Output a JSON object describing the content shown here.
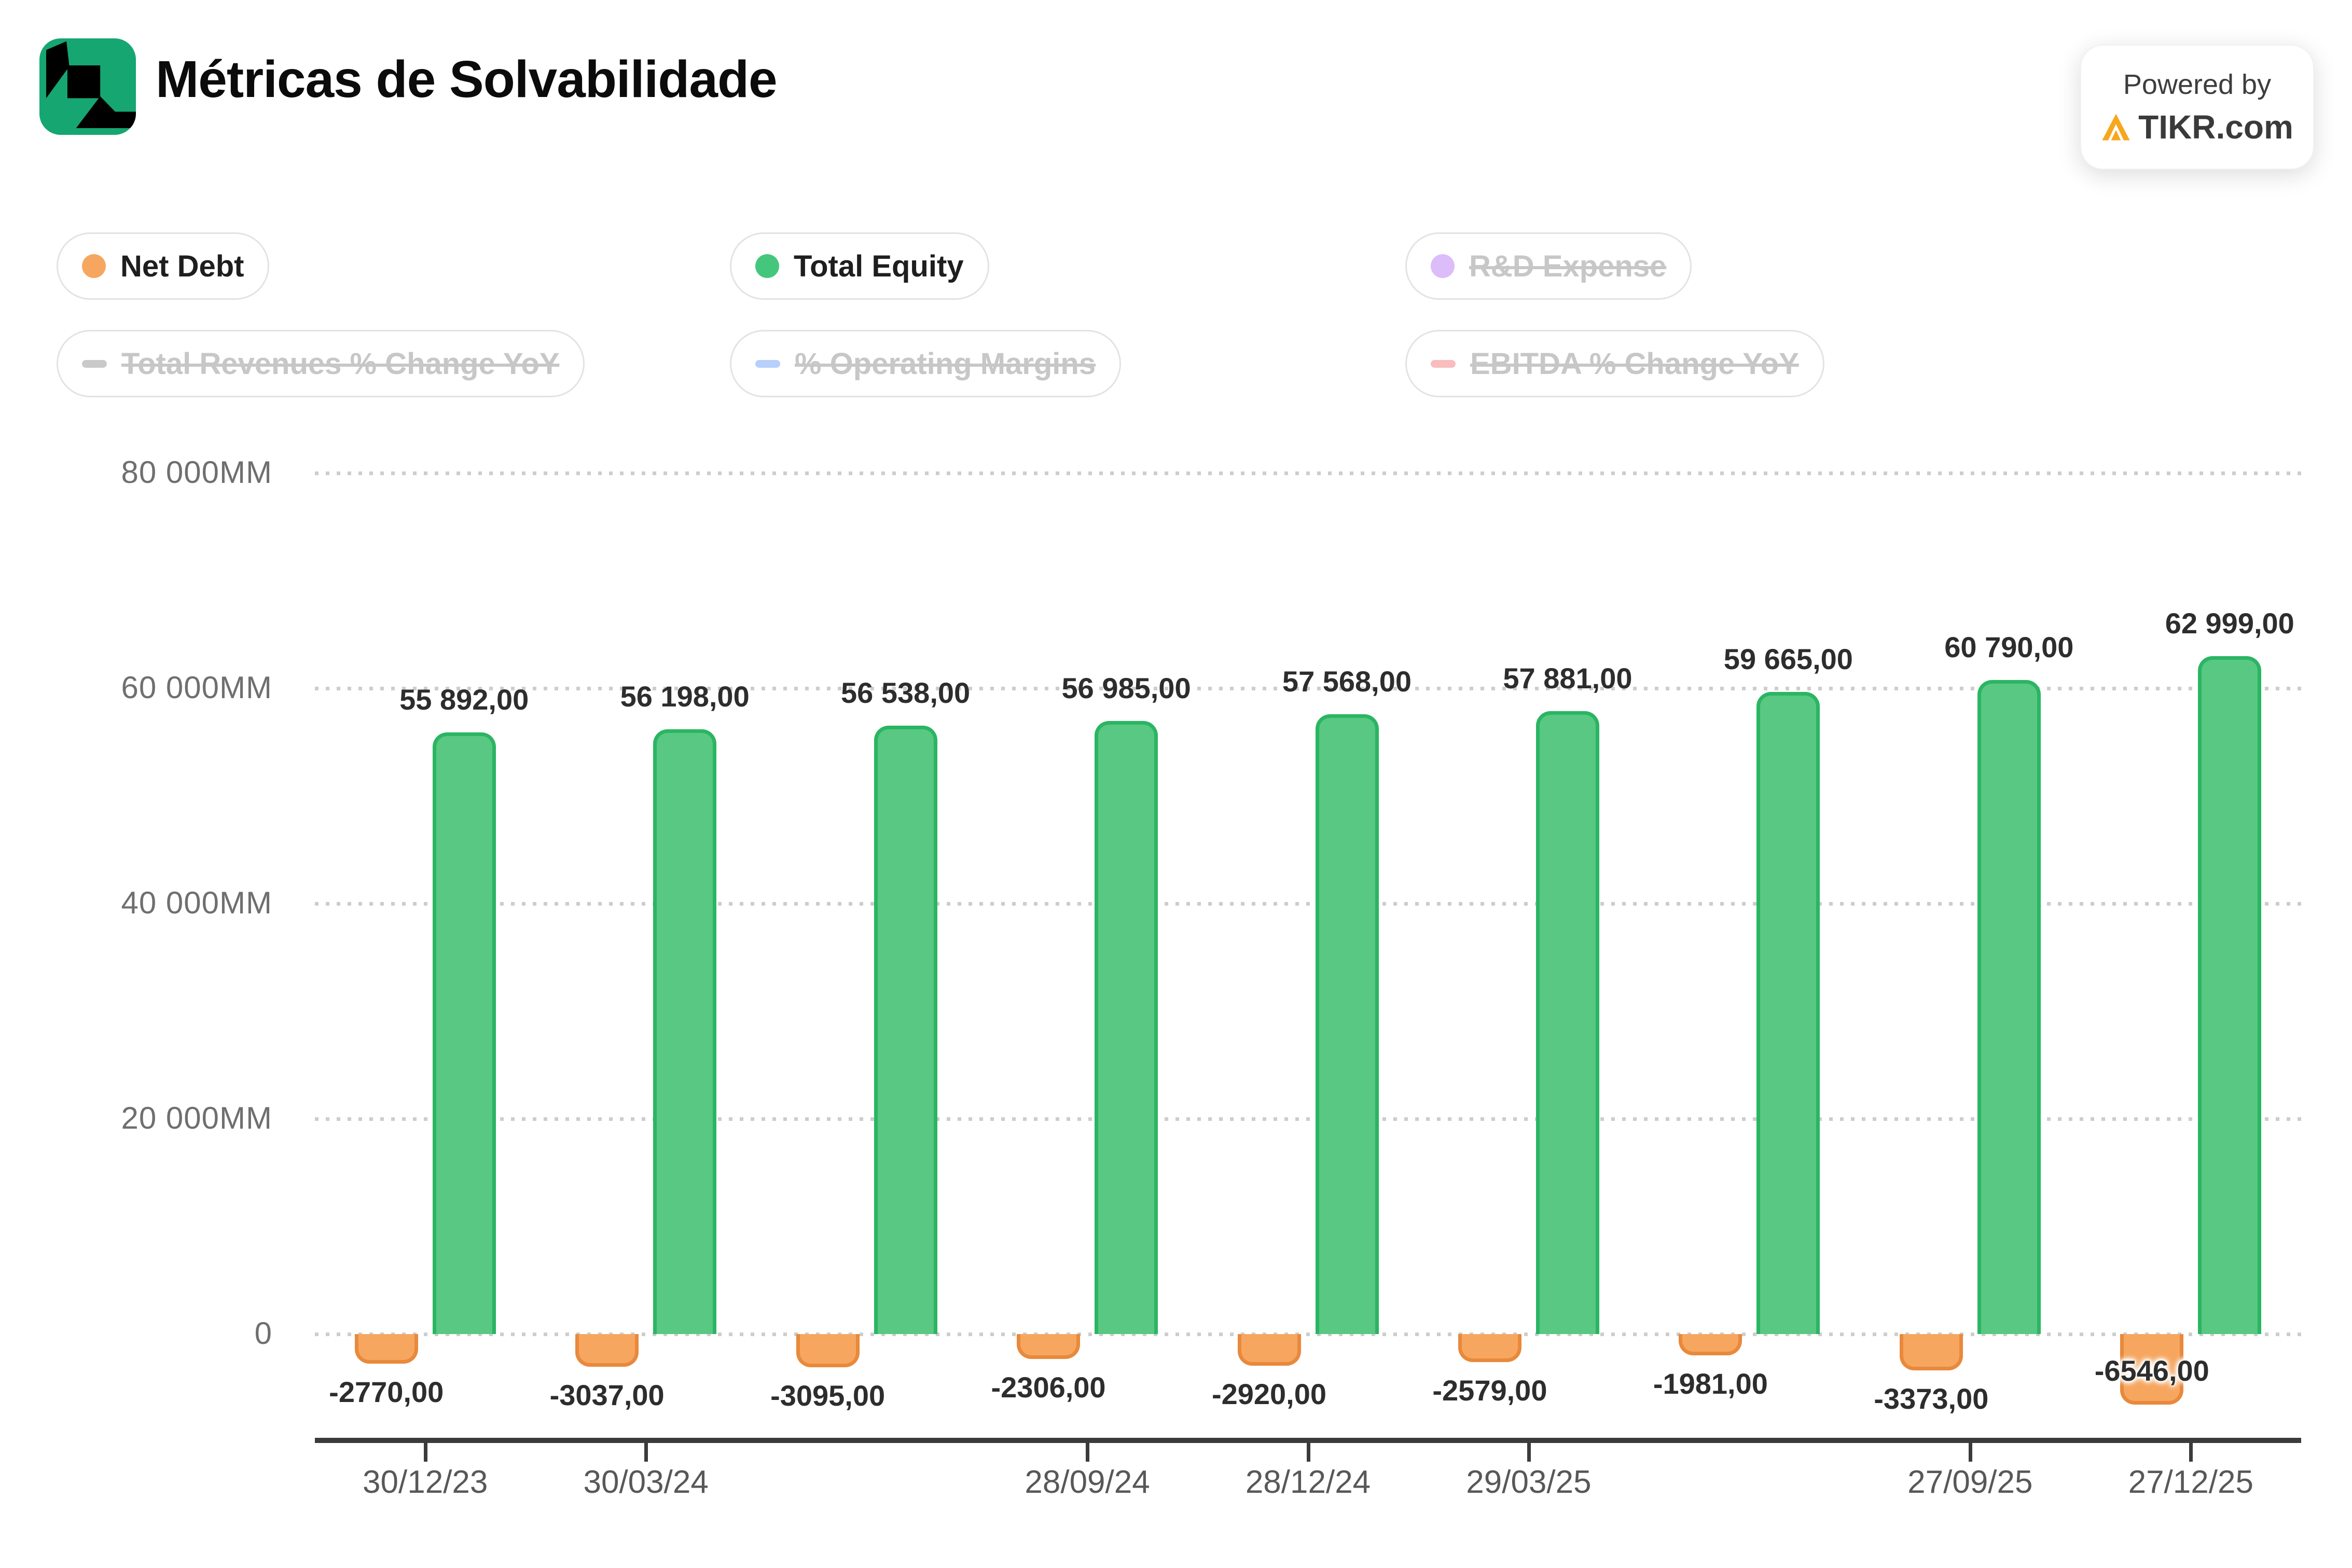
{
  "header": {
    "title": "Métricas de Solvabilidade",
    "badge_line1": "Powered by",
    "badge_line2": "TIKR.com"
  },
  "colors": {
    "green_fill": "#58c882",
    "green_stroke": "#2bb563",
    "orange_fill": "#f7a65f",
    "orange_stroke": "#e8893c",
    "axis": "#3b3b3b",
    "grid_dots": "#cdcdcd",
    "tikr_green": "#16a672",
    "tikr_amber": "#f7a61e"
  },
  "legend": {
    "items": [
      {
        "label": "Net Debt",
        "marker": "dot",
        "color": "#f7a65f",
        "active": true
      },
      {
        "label": "Total Equity",
        "marker": "dot",
        "color": "#44c77c",
        "active": true
      },
      {
        "label": "R&D Expense",
        "marker": "dot",
        "color": "#dcbcf9",
        "active": false
      },
      {
        "label": "Total Revenues % Change YoY",
        "marker": "dash",
        "color": "#c9c9c9",
        "active": false
      },
      {
        "label": "% Operating Margins",
        "marker": "dash",
        "color": "#b7cffb",
        "active": false
      },
      {
        "label": "EBITDA % Change YoY",
        "marker": "dash",
        "color": "#f9bdbd",
        "active": false
      }
    ]
  },
  "chart_data": {
    "type": "bar",
    "title": "Métricas de Solvabilidade",
    "categories": [
      "30/12/23",
      "30/03/24",
      "",
      "28/09/24",
      "28/12/24",
      "29/03/25",
      "",
      "27/09/25",
      "27/12/25"
    ],
    "series": [
      {
        "name": "Net Debt",
        "color": "#f7a65f",
        "values": [
          -2770,
          -3037,
          -3095,
          -2306,
          -2920,
          -2579,
          -1981,
          -3373,
          -6546
        ],
        "labels": [
          "-2770,00",
          "-3037,00",
          "-3095,00",
          "-2306,00",
          "-2920,00",
          "-2579,00",
          "-1981,00",
          "-3373,00",
          "-6546,00"
        ]
      },
      {
        "name": "Total Equity",
        "color": "#58c882",
        "values": [
          55892,
          56198,
          56538,
          56985,
          57568,
          57881,
          59665,
          60790,
          62999
        ],
        "labels": [
          "55 892,00",
          "56 198,00",
          "56 538,00",
          "56 985,00",
          "57 568,00",
          "57 881,00",
          "59 665,00",
          "60 790,00",
          "62 999,00"
        ]
      }
    ],
    "y_ticks": [
      {
        "value": 80000,
        "label": "80 000MM"
      },
      {
        "value": 60000,
        "label": "60 000MM"
      },
      {
        "value": 40000,
        "label": "40 000MM"
      },
      {
        "value": 20000,
        "label": "20 000MM"
      },
      {
        "value": 0,
        "label": "0"
      }
    ],
    "ylim": [
      -8000,
      84000
    ],
    "xlabel": "",
    "ylabel": "",
    "grid": "dotted-horizontal",
    "legend_position": "top"
  }
}
